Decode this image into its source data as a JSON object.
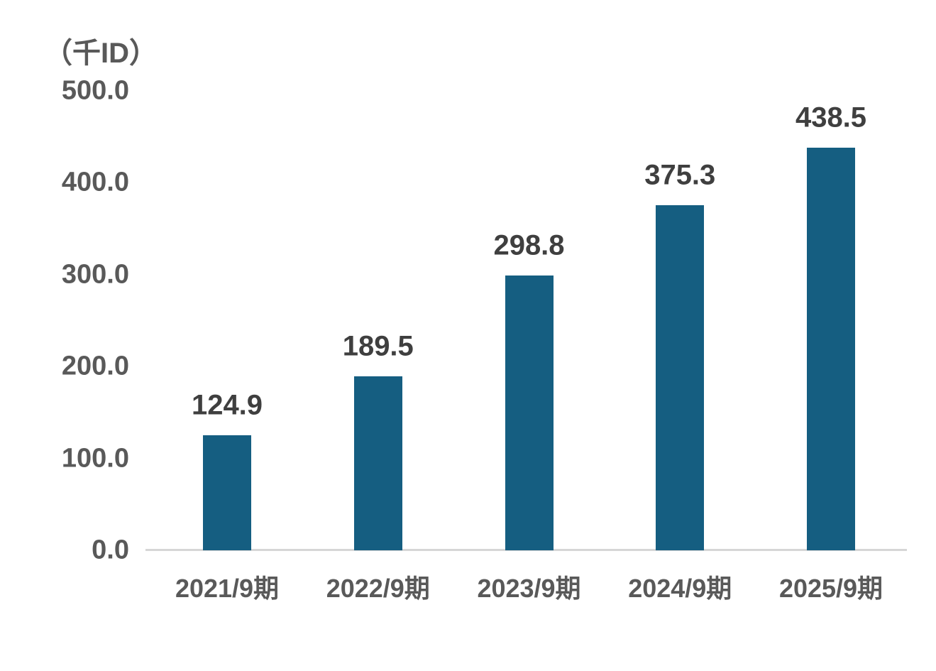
{
  "chart_data": {
    "type": "bar",
    "unit_label": "（千ID）",
    "categories": [
      "2021/9期",
      "2022/9期",
      "2023/9期",
      "2024/9期",
      "2025/9期"
    ],
    "values": [
      124.9,
      189.5,
      298.8,
      375.3,
      438.5
    ],
    "data_labels": [
      "124.9",
      "189.5",
      "298.8",
      "375.3",
      "438.5"
    ],
    "y_ticks": [
      {
        "value": 500,
        "label": "500.0"
      },
      {
        "value": 400,
        "label": "400.0"
      },
      {
        "value": 300,
        "label": "300.0"
      },
      {
        "value": 200,
        "label": "200.0"
      },
      {
        "value": 100,
        "label": "100.0"
      },
      {
        "value": 0,
        "label": "0.0"
      }
    ],
    "ylim": [
      0,
      500
    ],
    "grid": false,
    "legend": false,
    "colors": {
      "bar": "#155E81",
      "data_label": "#3F3F3F",
      "tick_label": "#595959",
      "axis_line": "#D6D6D6",
      "background": "#FFFFFF"
    }
  }
}
